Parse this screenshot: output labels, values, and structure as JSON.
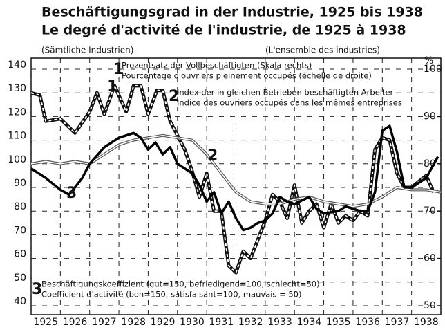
{
  "chart_data": {
    "type": "line",
    "title": [
      "Beschäftigungsgrad in der Industrie, 1925 bis 1938",
      "Le degré d'activité de l'industrie, de 1925 à 1938"
    ],
    "notes": [
      "(Sämtliche Industrien)",
      "(L'ensemble des industries)"
    ],
    "y2_unit": "%",
    "xlim": [
      1925,
      1939
    ],
    "xticks": [
      1925,
      1926,
      1927,
      1928,
      1929,
      1930,
      1931,
      1932,
      1933,
      1934,
      1935,
      1936,
      1937,
      1938
    ],
    "ylim": [
      40,
      140
    ],
    "yticks": [
      40,
      50,
      60,
      70,
      80,
      90,
      100,
      110,
      120,
      130,
      140
    ],
    "y2lim": [
      50,
      100
    ],
    "y2ticks": [
      50,
      60,
      70,
      80,
      90,
      100
    ],
    "grid": true,
    "series": [
      {
        "number": "1",
        "name": [
          "Prozentsatz der Vollbeschäftigten  (Skala rechts)",
          "Pourcentage d'ouvriers pleinement occupés (échelle de droite)"
        ],
        "axis": "y2",
        "color": "#111111",
        "style": "dashed",
        "x": [
          1925,
          1925.3,
          1925.5,
          1926,
          1926.5,
          1927,
          1927.25,
          1927.5,
          1927.85,
          1928.25,
          1928.5,
          1928.75,
          1929,
          1929.3,
          1929.5,
          1929.75,
          1930,
          1930.25,
          1930.5,
          1930.75,
          1931,
          1931.25,
          1931.5,
          1931.75,
          1932,
          1932.25,
          1932.5,
          1932.75,
          1933,
          1933.25,
          1933.5,
          1933.75,
          1934,
          1934.25,
          1934.5,
          1934.75,
          1935,
          1935.25,
          1935.5,
          1935.75,
          1936,
          1936.25,
          1936.5,
          1936.75,
          1937,
          1937.25,
          1937.5,
          1937.75,
          1938,
          1938.5,
          1938.75
        ],
        "values": [
          95,
          94.5,
          89,
          89.5,
          86.5,
          91,
          95,
          90.5,
          96.5,
          91,
          96.5,
          96.5,
          90.5,
          95.5,
          95.5,
          89,
          86,
          83,
          78.5,
          73,
          78,
          70,
          70,
          58.5,
          57,
          61.5,
          60,
          64,
          68,
          73.5,
          72,
          68.5,
          75.5,
          67.5,
          70,
          71.5,
          66.5,
          71.5,
          67.5,
          69,
          68,
          70,
          69,
          83,
          85.5,
          85,
          78,
          75,
          75,
          77.5,
          74
        ]
      },
      {
        "number": "2",
        "name": [
          "Index der in gleichen Betrieben beschäftigten Arbeiter",
          "Indice des ouvriers occupés dans les mêmes entreprises"
        ],
        "axis": "y",
        "color": "#555555",
        "style": "double",
        "x": [
          1925,
          1925.5,
          1926,
          1926.5,
          1927,
          1927.5,
          1928,
          1928.5,
          1929,
          1929.5,
          1930,
          1930.5,
          1931,
          1931.5,
          1932,
          1932.5,
          1933,
          1933.5,
          1934,
          1934.5,
          1935,
          1935.5,
          1936,
          1936.5,
          1937,
          1937.5,
          1938,
          1938.5,
          1939
        ],
        "values": [
          100,
          101,
          100,
          101,
          100,
          104,
          108,
          110,
          111,
          112,
          111,
          110,
          104,
          96,
          88,
          84,
          83,
          83,
          85,
          86,
          84,
          83,
          82,
          83,
          86,
          90,
          89,
          89,
          88
        ]
      },
      {
        "number": "3",
        "name": [
          "Beschäftigungskoeffizient (gut=150, befriedigend=100, schlecht=50)",
          "Coefficient d'activité (bon=150, satisfaisant=100, mauvais = 50)"
        ],
        "axis": "y",
        "color": "#000000",
        "style": "solid",
        "x": [
          1925,
          1925.5,
          1926,
          1926.3,
          1926.75,
          1927,
          1927.5,
          1928,
          1928.5,
          1928.75,
          1929,
          1929.25,
          1929.5,
          1929.75,
          1930,
          1930.5,
          1930.75,
          1931,
          1931.25,
          1931.5,
          1931.75,
          1932,
          1932.25,
          1932.5,
          1932.75,
          1933,
          1933.25,
          1933.5,
          1933.75,
          1934,
          1934.5,
          1934.75,
          1935,
          1935.5,
          1935.75,
          1936,
          1936.25,
          1936.5,
          1936.75,
          1937,
          1937.25,
          1937.5,
          1937.75,
          1938,
          1938.5,
          1938.9
        ],
        "values": [
          98,
          94,
          89,
          87,
          94,
          100,
          107,
          111,
          113,
          111,
          106,
          109,
          104,
          107,
          100,
          96,
          91,
          84,
          88,
          79,
          84,
          77,
          72,
          73,
          75,
          76,
          79,
          86,
          84,
          83,
          86,
          81,
          79,
          80,
          82,
          81,
          80,
          80,
          88,
          114,
          116,
          105,
          90,
          90,
          94,
          103
        ]
      }
    ]
  }
}
